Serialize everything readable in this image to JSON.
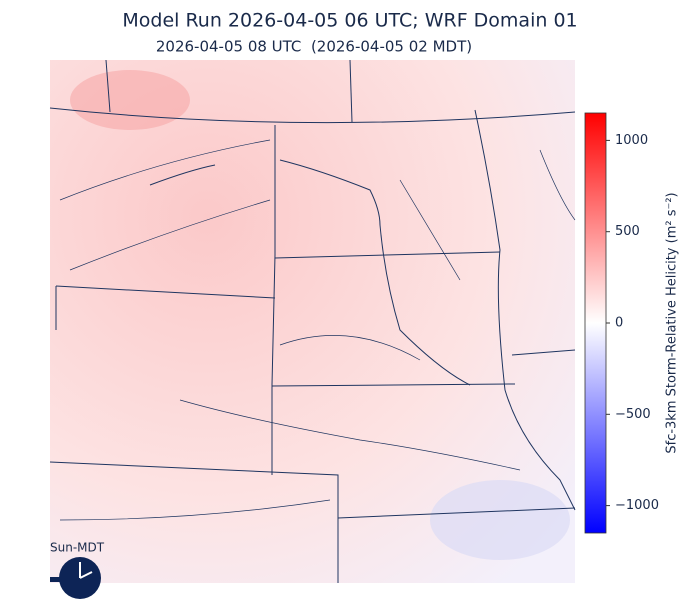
{
  "title": "Model Run 2026-04-05 06 UTC; WRF Domain 01",
  "subtitle": "2026-04-05 08 UTC  (2026-04-05 02 MDT)",
  "colorbar": {
    "label": "Sfc-3km Storm-Relative Helicity (m² s⁻²)",
    "lim": [
      -1150,
      1150
    ],
    "ticks": [
      {
        "value": -1000,
        "label": "−1000"
      },
      {
        "value": -500,
        "label": "−500"
      },
      0,
      500,
      1000
    ],
    "colors": [
      "#0000ff",
      "#ffffff",
      "#ff0000"
    ]
  },
  "clock_label": "Sun-MDT"
}
